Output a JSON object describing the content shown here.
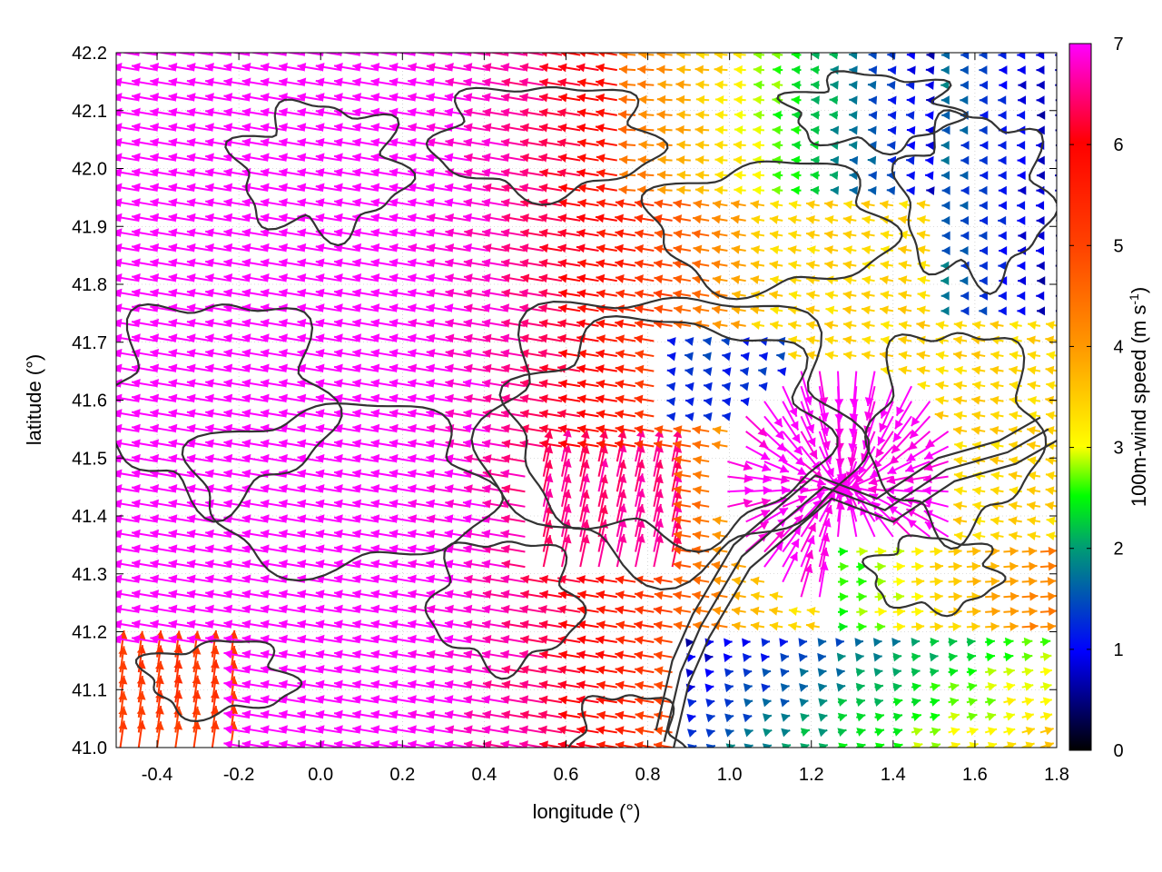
{
  "chart_data": {
    "type": "vector-field",
    "xlabel": "longitude (°)",
    "ylabel": "latitude (°)",
    "xlim": [
      -0.5,
      1.8
    ],
    "ylim": [
      41.0,
      42.2
    ],
    "xticks": [
      -0.4,
      -0.2,
      0.0,
      0.2,
      0.4,
      0.6,
      0.8,
      1.0,
      1.2,
      1.4,
      1.6,
      1.8
    ],
    "yticks": [
      41.0,
      41.1,
      41.2,
      41.3,
      41.4,
      41.5,
      41.6,
      41.7,
      41.8,
      41.9,
      42.0,
      42.1,
      42.2
    ],
    "xtick_labels": [
      "-0.4",
      "-0.2",
      "0.0",
      "0.2",
      "0.4",
      "0.6",
      "0.8",
      "1.0",
      "1.2",
      "1.4",
      "1.6",
      "1.8"
    ],
    "ytick_labels": [
      "41.0",
      "41.1",
      "41.2",
      "41.3",
      "41.4",
      "41.5",
      "41.6",
      "41.7",
      "41.8",
      "41.9",
      "42.0",
      "42.1",
      "42.2"
    ],
    "grid": true,
    "colorbar": {
      "label": "100m-wind speed (m s",
      "label_sup": "-1",
      "label_end": ")",
      "range": [
        0,
        7
      ],
      "ticks": [
        0,
        1,
        2,
        3,
        4,
        5,
        6,
        7
      ],
      "tick_labels": [
        "0",
        "1",
        "2",
        "3",
        "4",
        "5",
        "6",
        "7"
      ],
      "palette": [
        "#000000",
        "#0000ff",
        "#00ff00",
        "#ffff00",
        "#ff8000",
        "#ff0000",
        "#ff00ff"
      ]
    },
    "contour_color": "#333333",
    "vectors": [
      {
        "lon": -0.45,
        "lat": 42.18,
        "u": -1.0,
        "v": 0.0,
        "speed": 7.0
      },
      {
        "lon": -0.2,
        "lat": 42.1,
        "u": -1.0,
        "v": 0.05,
        "speed": 7.0
      },
      {
        "lon": 0.1,
        "lat": 42.0,
        "u": -1.0,
        "v": 0.05,
        "speed": 7.0
      },
      {
        "lon": 0.5,
        "lat": 41.8,
        "u": -1.0,
        "v": 0.05,
        "speed": 7.0
      },
      {
        "lon": 0.8,
        "lat": 41.85,
        "u": -1.0,
        "v": 0.0,
        "speed": 5.6
      },
      {
        "lon": 1.0,
        "lat": 41.85,
        "u": -1.0,
        "v": 0.0,
        "speed": 5.4
      },
      {
        "lon": 1.5,
        "lat": 41.9,
        "u": -1.0,
        "v": 0.0,
        "speed": 2.2
      },
      {
        "lon": 1.7,
        "lat": 42.0,
        "u": -1.0,
        "v": 0.0,
        "speed": 0.8
      },
      {
        "lon": 1.3,
        "lat": 41.45,
        "u": -0.3,
        "v": 1.0,
        "speed": 7.0
      },
      {
        "lon": 1.0,
        "lat": 41.15,
        "u": 1.0,
        "v": 0.0,
        "speed": 1.0
      },
      {
        "lon": 1.5,
        "lat": 41.1,
        "u": 1.0,
        "v": 0.1,
        "speed": 2.0
      },
      {
        "lon": 1.7,
        "lat": 41.3,
        "u": 1.0,
        "v": 0.0,
        "speed": 4.0
      },
      {
        "lon": -0.1,
        "lat": 41.2,
        "u": -1.0,
        "v": 0.0,
        "speed": 7.0
      },
      {
        "lon": -0.35,
        "lat": 41.05,
        "u": 0.0,
        "v": 1.0,
        "speed": 5.5
      }
    ]
  }
}
